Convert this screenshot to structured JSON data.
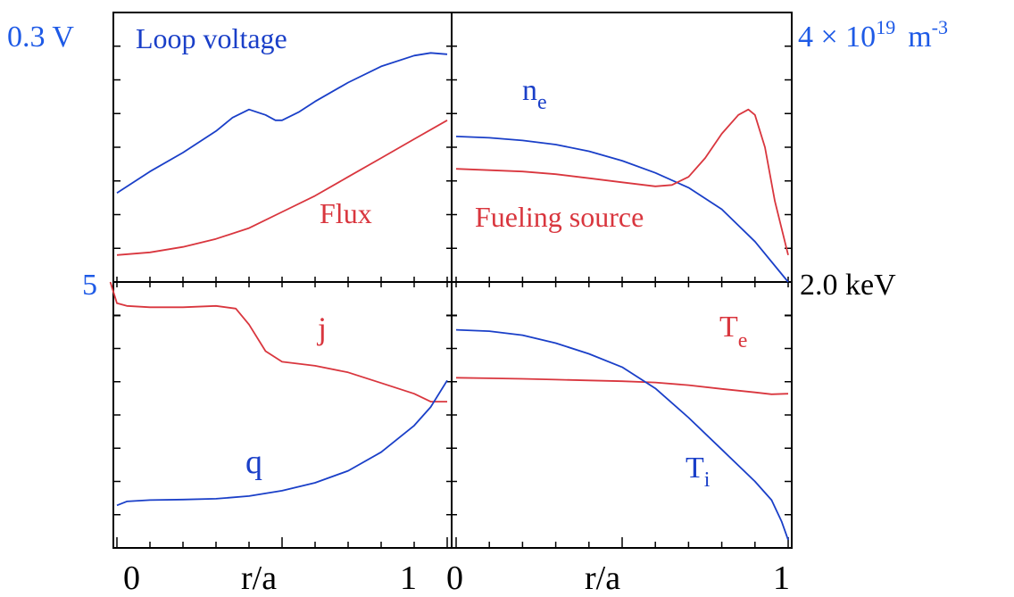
{
  "colors": {
    "blue": "#1a3fc8",
    "red": "#d9363e",
    "black": "#000000",
    "label_blue": "#1e5ae6"
  },
  "labels": {
    "left_top_scale": "0.3 V",
    "right_top_scale": "4 × 10",
    "right_top_exp": "19",
    "right_top_unit": "m",
    "right_top_unit_exp": "-3",
    "left_mid_scale": "5",
    "right_mid_scale": "2.0 keV",
    "x_left_0": "0",
    "x_left_label": "r/a",
    "x_left_1": "1",
    "x_right_0": "0",
    "x_right_label": "r/a",
    "x_right_1": "1"
  },
  "chart_data": [
    {
      "type": "line",
      "panel": "top-left",
      "xlim": [
        0,
        1
      ],
      "series": [
        {
          "name": "Loop voltage",
          "color": "blue",
          "x": [
            0,
            0.05,
            0.1,
            0.2,
            0.3,
            0.35,
            0.4,
            0.45,
            0.48,
            0.5,
            0.55,
            0.6,
            0.7,
            0.8,
            0.9,
            0.95,
            1.0
          ],
          "y": [
            0.33,
            0.37,
            0.41,
            0.48,
            0.56,
            0.61,
            0.64,
            0.62,
            0.6,
            0.6,
            0.63,
            0.67,
            0.74,
            0.8,
            0.84,
            0.85,
            0.845
          ]
        },
        {
          "name": "Flux",
          "color": "red",
          "x": [
            0,
            0.1,
            0.2,
            0.3,
            0.4,
            0.5,
            0.6,
            0.7,
            0.8,
            0.9,
            1.0
          ],
          "y": [
            0.1,
            0.11,
            0.13,
            0.16,
            0.2,
            0.26,
            0.32,
            0.39,
            0.46,
            0.53,
            0.6
          ]
        }
      ]
    },
    {
      "type": "line",
      "panel": "top-right",
      "xlim": [
        0,
        1
      ],
      "series": [
        {
          "name": "n",
          "subscript": "e",
          "color": "blue",
          "x": [
            0,
            0.1,
            0.2,
            0.3,
            0.4,
            0.5,
            0.6,
            0.7,
            0.8,
            0.9,
            1.0
          ],
          "y": [
            0.54,
            0.535,
            0.525,
            0.51,
            0.485,
            0.45,
            0.405,
            0.35,
            0.27,
            0.15,
            0.0
          ]
        },
        {
          "name": "Fueling source",
          "color": "red",
          "x": [
            0,
            0.1,
            0.2,
            0.3,
            0.4,
            0.5,
            0.6,
            0.65,
            0.7,
            0.75,
            0.8,
            0.85,
            0.88,
            0.9,
            0.93,
            0.96,
            1.0
          ],
          "y": [
            0.42,
            0.415,
            0.41,
            0.4,
            0.385,
            0.37,
            0.355,
            0.36,
            0.39,
            0.46,
            0.55,
            0.62,
            0.64,
            0.62,
            0.5,
            0.3,
            0.1
          ]
        }
      ]
    },
    {
      "type": "line",
      "panel": "bottom-left",
      "xlim": [
        0,
        1
      ],
      "series": [
        {
          "name": "j",
          "color": "red",
          "x": [
            -0.02,
            0.0,
            0.03,
            0.1,
            0.2,
            0.3,
            0.36,
            0.4,
            0.45,
            0.5,
            0.6,
            0.7,
            0.8,
            0.9,
            0.95,
            1.0
          ],
          "y": [
            1.0,
            0.92,
            0.91,
            0.905,
            0.905,
            0.91,
            0.9,
            0.84,
            0.74,
            0.7,
            0.685,
            0.66,
            0.62,
            0.58,
            0.55,
            0.55
          ]
        },
        {
          "name": "q",
          "color": "blue",
          "x": [
            0,
            0.03,
            0.1,
            0.2,
            0.3,
            0.4,
            0.5,
            0.6,
            0.7,
            0.8,
            0.9,
            0.95,
            1.0
          ],
          "y": [
            0.16,
            0.175,
            0.18,
            0.182,
            0.185,
            0.195,
            0.215,
            0.245,
            0.29,
            0.36,
            0.46,
            0.53,
            0.63
          ]
        }
      ]
    },
    {
      "type": "line",
      "panel": "bottom-right",
      "xlim": [
        0,
        1
      ],
      "series": [
        {
          "name": "T",
          "subscript": "e",
          "color": "red",
          "x": [
            0,
            0.1,
            0.2,
            0.3,
            0.4,
            0.5,
            0.6,
            0.7,
            0.8,
            0.9,
            0.95,
            1.0
          ],
          "y": [
            0.64,
            0.638,
            0.636,
            0.633,
            0.63,
            0.627,
            0.622,
            0.612,
            0.598,
            0.585,
            0.578,
            0.58
          ]
        },
        {
          "name": "T",
          "subscript": "i",
          "color": "blue",
          "x": [
            0,
            0.1,
            0.2,
            0.3,
            0.4,
            0.5,
            0.6,
            0.7,
            0.8,
            0.9,
            0.95,
            0.98,
            1.0
          ],
          "y": [
            0.82,
            0.815,
            0.8,
            0.77,
            0.73,
            0.68,
            0.6,
            0.49,
            0.37,
            0.25,
            0.18,
            0.1,
            0.03
          ]
        }
      ]
    }
  ]
}
